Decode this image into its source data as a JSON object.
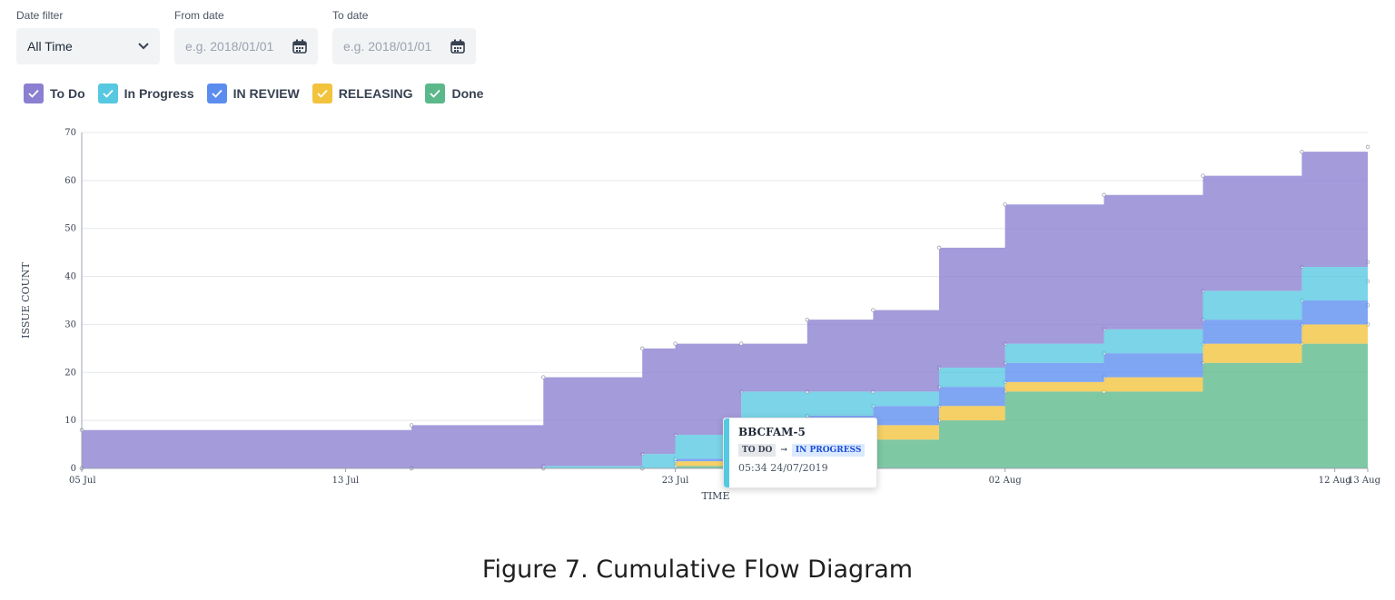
{
  "filters": {
    "date_filter_label": "Date filter",
    "date_filter_value": "All Time",
    "from_label": "From date",
    "from_placeholder": "e.g. 2018/01/01",
    "to_label": "To date",
    "to_placeholder": "e.g. 2018/01/01"
  },
  "legend": [
    {
      "label": "To Do",
      "color": "#8b7fd1"
    },
    {
      "label": "In Progress",
      "color": "#56c8e0"
    },
    {
      "label": "IN REVIEW",
      "color": "#5b8def"
    },
    {
      "label": "RELEASING",
      "color": "#f2c33c"
    },
    {
      "label": "Done",
      "color": "#5bb88a"
    }
  ],
  "tooltip": {
    "key": "BBCFAM-5",
    "from": "TO DO",
    "arrow": "→",
    "to": "IN PROGRESS",
    "time": "05:34 24/07/2019"
  },
  "caption": "Figure 7. Cumulative Flow Diagram",
  "chart_data": {
    "type": "area",
    "stacked": true,
    "xlabel": "TIME",
    "ylabel": "ISSUE COUNT",
    "ylim": [
      0,
      70
    ],
    "yticks": [
      0,
      10,
      20,
      30,
      40,
      50,
      60,
      70
    ],
    "xlim": [
      "2019-07-05",
      "2019-08-13"
    ],
    "xticks": [
      {
        "label": "05 Jul",
        "date": "2019-07-05"
      },
      {
        "label": "13 Jul",
        "date": "2019-07-13"
      },
      {
        "label": "23 Jul",
        "date": "2019-07-23"
      },
      {
        "label": "02 Aug",
        "date": "2019-08-02"
      },
      {
        "label": "12 Aug",
        "date": "2019-08-12"
      },
      {
        "label": "13 Aug",
        "date": "2019-08-13"
      }
    ],
    "grid": true,
    "x": [
      "2019-07-05",
      "2019-07-15",
      "2019-07-19",
      "2019-07-22",
      "2019-07-23",
      "2019-07-25",
      "2019-07-27",
      "2019-07-29",
      "2019-07-31",
      "2019-08-02",
      "2019-08-05",
      "2019-08-08",
      "2019-08-11",
      "2019-08-13"
    ],
    "series": [
      {
        "name": "Done",
        "color": "#5bb88a",
        "values": [
          0,
          0,
          0,
          0,
          0.5,
          2,
          4,
          6,
          10,
          16,
          16,
          22,
          26,
          30
        ]
      },
      {
        "name": "RELEASING",
        "color": "#f2c33c",
        "values": [
          0,
          0,
          0,
          0,
          1,
          2,
          2,
          3,
          3,
          2,
          3,
          4,
          4,
          4
        ]
      },
      {
        "name": "IN REVIEW",
        "color": "#5b8def",
        "values": [
          0,
          0,
          0,
          0,
          0.5,
          3,
          5,
          4,
          4,
          4,
          5,
          5,
          5,
          5
        ]
      },
      {
        "name": "In Progress",
        "color": "#56c8e0",
        "values": [
          0,
          0,
          0.5,
          3,
          5,
          9,
          5,
          3,
          4,
          4,
          5,
          6,
          7,
          4
        ]
      },
      {
        "name": "To Do",
        "color": "#8b7fd1",
        "values": [
          8,
          9,
          18.5,
          22,
          19,
          10,
          15,
          17,
          25,
          29,
          28,
          24,
          24,
          24
        ]
      }
    ]
  }
}
